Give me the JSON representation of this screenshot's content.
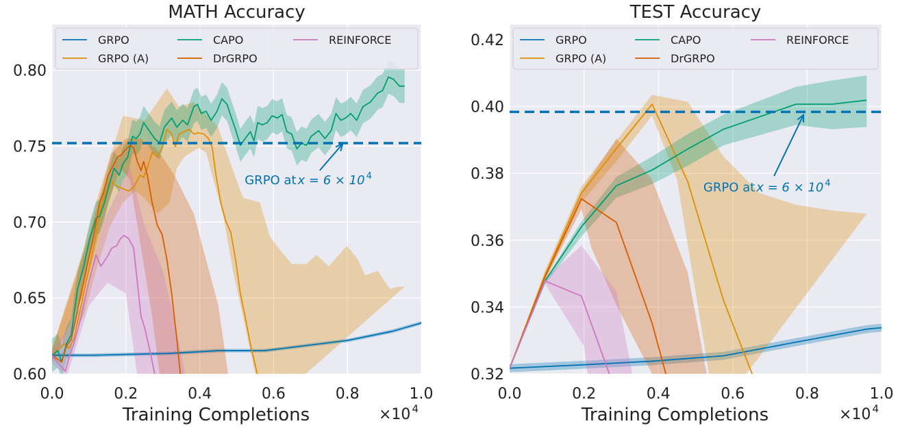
{
  "colors": {
    "GRPO": "#0173b2",
    "GRPO (A)": "#de8f05",
    "CAPO": "#029e73",
    "DrGRPO": "#d55e00",
    "REINFORCE": "#cc78bc",
    "axes_bg": "#eaeaf2"
  },
  "chart_data": [
    {
      "type": "line",
      "title": "MATH Accuracy",
      "xlabel": "Training Completions",
      "x_multiplier": "×10",
      "x_multiplier_exp": "4",
      "xlim": [
        0,
        1.0
      ],
      "ylim": [
        0.6,
        0.83
      ],
      "xticks": [
        "0.0",
        "0.2",
        "0.4",
        "0.6",
        "0.8",
        "1.0"
      ],
      "yticks": [
        "0.60",
        "0.65",
        "0.70",
        "0.75",
        "0.80"
      ],
      "grid": true,
      "legend": "top, 3 columns",
      "legend_entries": [
        "GRPO",
        "CAPO",
        "REINFORCE",
        "GRPO (A)",
        "DrGRPO"
      ],
      "hline": {
        "y": 0.752,
        "color": "#0173b2",
        "style": "dashed"
      },
      "annotation": {
        "text": "GRPO at ",
        "math": "x = 6 × 10",
        "exp": "4",
        "text_at": [
          0.694,
          0.728
        ],
        "arrow_from": [
          0.725,
          0.734
        ],
        "arrow_to": [
          0.787,
          0.7515
        ]
      },
      "series": [
        {
          "name": "GRPO",
          "x": [
            0,
            0.112,
            0.318,
            0.45,
            0.576,
            0.802,
            0.922,
            1.001
          ],
          "y": [
            0.6123,
            0.6123,
            0.6135,
            0.6153,
            0.6153,
            0.6221,
            0.6281,
            0.6336
          ],
          "band": 0.0012
        },
        {
          "name": "GRPO (A)",
          "x": [
            0,
            0.019,
            0.033,
            0.046,
            0.059,
            0.079,
            0.099,
            0.119,
            0.132,
            0.145,
            0.158,
            0.168,
            0.178,
            0.192,
            0.208,
            0.221,
            0.238,
            0.248,
            0.258,
            0.271,
            0.285,
            0.298,
            0.311,
            0.324,
            0.334,
            0.344,
            0.358,
            0.371,
            0.384,
            0.397,
            0.411,
            0.424,
            0.434,
            0.444,
            0.457,
            0.47,
            0.484,
            0.497,
            0.51,
            0.523,
            0.537,
            0.557
          ],
          "y": [
            0.6123,
            0.6168,
            0.6198,
            0.6168,
            0.6228,
            0.6453,
            0.6679,
            0.6904,
            0.7099,
            0.7189,
            0.7279,
            0.7249,
            0.7234,
            0.7219,
            0.7204,
            0.7229,
            0.7309,
            0.7294,
            0.7354,
            0.7459,
            0.7429,
            0.7489,
            0.761,
            0.758,
            0.7497,
            0.758,
            0.7595,
            0.761,
            0.758,
            0.7587,
            0.758,
            0.755,
            0.749,
            0.7309,
            0.7129,
            0.7009,
            0.6934,
            0.6754,
            0.6529,
            0.6378,
            0.6198,
            0.5988
          ],
          "upper": {
            "x": [
              0,
              0.086,
              0.119,
              0.192,
              0.251,
              0.311,
              0.344,
              0.384,
              0.45,
              0.477,
              0.517,
              0.563,
              0.59,
              0.623,
              0.649,
              0.689,
              0.716,
              0.749,
              0.799,
              0.828,
              0.848,
              0.882,
              0.915,
              0.935,
              0.955
            ],
            "y": [
              0.6168,
              0.6829,
              0.7129,
              0.77,
              0.767,
              0.788,
              0.776,
              0.779,
              0.7625,
              0.743,
              0.716,
              0.7129,
              0.6904,
              0.6799,
              0.6724,
              0.6724,
              0.6784,
              0.6709,
              0.6844,
              0.6754,
              0.6649,
              0.6679,
              0.6559,
              0.6574,
              0.6574
            ]
          },
          "lower": {
            "x": [
              0,
              0.086,
              0.119,
              0.158,
              0.192,
              0.225,
              0.251,
              0.285,
              0.318,
              0.338,
              0.358,
              0.397,
              0.417,
              0.437,
              0.464,
              0.49,
              0.517,
              0.55,
              0.583
            ],
            "y": [
              0.6078,
              0.6378,
              0.6679,
              0.6979,
              0.7129,
              0.7204,
              0.7159,
              0.7054,
              0.7129,
              0.7354,
              0.7429,
              0.7489,
              0.7459,
              0.7279,
              0.7039,
              0.6679,
              0.6378,
              0.6,
              0.5778
            ]
          }
        },
        {
          "name": "CAPO",
          "x": [
            0,
            0.016,
            0.026,
            0.039,
            0.052,
            0.069,
            0.086,
            0.102,
            0.119,
            0.129,
            0.142,
            0.155,
            0.168,
            0.182,
            0.192,
            0.205,
            0.218,
            0.228,
            0.238,
            0.248,
            0.265,
            0.278,
            0.291,
            0.304,
            0.324,
            0.338,
            0.354,
            0.367,
            0.384,
            0.394,
            0.404,
            0.417,
            0.431,
            0.447,
            0.46,
            0.474,
            0.484,
            0.497,
            0.51,
            0.523,
            0.537,
            0.547,
            0.557,
            0.57,
            0.583,
            0.596,
            0.61,
            0.623,
            0.636,
            0.649,
            0.663,
            0.676,
            0.689,
            0.702,
            0.722,
            0.739,
            0.756,
            0.769,
            0.782,
            0.795,
            0.809,
            0.825,
            0.842,
            0.862,
            0.882,
            0.895,
            0.911,
            0.925,
            0.941,
            0.955
          ],
          "y": [
            0.6123,
            0.6153,
            0.6078,
            0.6198,
            0.6258,
            0.6559,
            0.6709,
            0.6889,
            0.7024,
            0.7039,
            0.7129,
            0.7249,
            0.7354,
            0.7309,
            0.7384,
            0.7429,
            0.7565,
            0.755,
            0.758,
            0.7655,
            0.7595,
            0.755,
            0.752,
            0.7625,
            0.7685,
            0.7625,
            0.767,
            0.764,
            0.776,
            0.7775,
            0.7715,
            0.773,
            0.767,
            0.773,
            0.7812,
            0.7775,
            0.77,
            0.761,
            0.7505,
            0.755,
            0.7595,
            0.7535,
            0.7655,
            0.764,
            0.7655,
            0.77,
            0.7685,
            0.7707,
            0.7595,
            0.758,
            0.7482,
            0.752,
            0.7505,
            0.7565,
            0.7602,
            0.755,
            0.7602,
            0.7715,
            0.767,
            0.7685,
            0.7715,
            0.767,
            0.776,
            0.779,
            0.785,
            0.7865,
            0.7955,
            0.794,
            0.7895,
            0.7895
          ],
          "band": 0.011
        },
        {
          "name": "DrGRPO",
          "x": [
            0,
            0.026,
            0.039,
            0.052,
            0.072,
            0.092,
            0.112,
            0.129,
            0.139,
            0.152,
            0.165,
            0.178,
            0.188,
            0.198,
            0.211,
            0.221,
            0.231,
            0.241,
            0.248,
            0.258,
            0.271,
            0.285,
            0.298,
            0.311,
            0.324,
            0.338,
            0.348
          ],
          "y": [
            0.6123,
            0.6078,
            0.6183,
            0.6228,
            0.6453,
            0.6679,
            0.6904,
            0.7129,
            0.7189,
            0.7309,
            0.7369,
            0.7429,
            0.7444,
            0.7474,
            0.7505,
            0.7489,
            0.7399,
            0.7339,
            0.7399,
            0.7309,
            0.7129,
            0.6979,
            0.6919,
            0.6754,
            0.6529,
            0.6228,
            0.5988
          ],
          "upper": {
            "x": [
              0,
              0.1,
              0.16,
              0.2,
              0.24,
              0.28,
              0.298,
              0.331,
              0.384,
              0.417,
              0.45,
              0.477
            ],
            "y": [
              0.616,
              0.69,
              0.745,
              0.755,
              0.755,
              0.749,
              0.743,
              0.731,
              0.7054,
              0.6754,
              0.6453,
              0.6
            ]
          },
          "lower": {
            "x": [
              0,
              0.086,
              0.152,
              0.185,
              0.211,
              0.231,
              0.251,
              0.271,
              0.291
            ],
            "y": [
              0.6078,
              0.6529,
              0.7129,
              0.7354,
              0.728,
              0.6979,
              0.6679,
              0.6378,
              0.6
            ]
          }
        },
        {
          "name": "REINFORCE",
          "x": [
            0,
            0.019,
            0.036,
            0.046,
            0.059,
            0.079,
            0.099,
            0.119,
            0.132,
            0.149,
            0.162,
            0.175,
            0.185,
            0.195,
            0.208,
            0.221,
            0.231,
            0.241,
            0.251,
            0.265,
            0.278
          ],
          "y": [
            0.6123,
            0.6063,
            0.6018,
            0.6108,
            0.6198,
            0.6378,
            0.6604,
            0.6784,
            0.6709,
            0.6769,
            0.6829,
            0.6844,
            0.6889,
            0.6912,
            0.6889,
            0.6829,
            0.6604,
            0.6378,
            0.6303,
            0.6153,
            0.6
          ],
          "upper": {
            "x": [
              0,
              0.08,
              0.14,
              0.2,
              0.21,
              0.25,
              0.3,
              0.33,
              0.36
            ],
            "y": [
              0.614,
              0.645,
              0.701,
              0.731,
              0.737,
              0.698,
              0.668,
              0.638,
              0.6
            ]
          },
          "lower": {
            "x": [
              0,
              0.04,
              0.1,
              0.15,
              0.2,
              0.23
            ],
            "y": [
              0.607,
              0.598,
              0.645,
              0.66,
              0.653,
              0.6
            ]
          }
        }
      ]
    },
    {
      "type": "line",
      "title": "TEST Accuracy",
      "xlabel": "Training Completions",
      "x_multiplier": "×10",
      "x_multiplier_exp": "4",
      "xlim": [
        0,
        1.0
      ],
      "ylim": [
        0.32,
        0.4245
      ],
      "xticks": [
        "0.0",
        "0.2",
        "0.4",
        "0.6",
        "0.8",
        "1.0"
      ],
      "yticks": [
        "0.32",
        "0.34",
        "0.36",
        "0.38",
        "0.40",
        "0.42"
      ],
      "grid": true,
      "legend": "top, 3 columns",
      "legend_entries": [
        "GRPO",
        "CAPO",
        "REINFORCE",
        "GRPO (A)",
        "DrGRPO"
      ],
      "hline": {
        "y": 0.3984,
        "color": "#0173b2",
        "style": "dashed"
      },
      "annotation": {
        "text": "GRPO at ",
        "math": "x = 6 × 10",
        "exp": "4",
        "text_at": [
          0.692,
          0.376
        ],
        "arrow_from": [
          0.711,
          0.3792
        ],
        "arrow_to": [
          0.79,
          0.3975
        ]
      },
      "series": [
        {
          "name": "GRPO",
          "x": [
            0,
            0.193,
            0.383,
            0.575,
            0.77,
            0.96,
            1.0
          ],
          "y": [
            0.3217,
            0.3227,
            0.3238,
            0.3254,
            0.3295,
            0.3334,
            0.3338
          ],
          "band": 0.0012
        },
        {
          "name": "GRPO (A)",
          "x": [
            0,
            0.095,
            0.193,
            0.287,
            0.383,
            0.479,
            0.575,
            0.652,
            0.77
          ],
          "y": [
            0.3217,
            0.3495,
            0.3741,
            0.3874,
            0.4007,
            0.3775,
            0.342,
            0.32,
            0.305
          ],
          "upper": {
            "x": [
              0,
              0.095,
              0.193,
              0.287,
              0.383,
              0.479,
              0.575,
              0.672,
              0.77,
              0.867,
              0.96
            ],
            "y": [
              0.3218,
              0.3509,
              0.3761,
              0.3898,
              0.4035,
              0.4014,
              0.385,
              0.3741,
              0.3706,
              0.3689,
              0.3679
            ]
          },
          "lower": {
            "x": [
              0,
              0.095,
              0.193,
              0.287,
              0.383,
              0.45,
              0.536,
              0.569
            ],
            "y": [
              0.3215,
              0.3481,
              0.3713,
              0.3836,
              0.3973,
              0.3782,
              0.32,
              0.31
            ]
          }
        },
        {
          "name": "CAPO",
          "x": [
            0,
            0.095,
            0.193,
            0.287,
            0.383,
            0.479,
            0.575,
            0.77,
            0.867,
            0.96
          ],
          "y": [
            0.3217,
            0.3478,
            0.364,
            0.3763,
            0.381,
            0.3873,
            0.3932,
            0.4007,
            0.4007,
            0.4019
          ],
          "upper": {
            "x": [
              0,
              0.095,
              0.193,
              0.287,
              0.383,
              0.479,
              0.575,
              0.77,
              0.867,
              0.96
            ],
            "y": [
              0.3218,
              0.3481,
              0.3656,
              0.3789,
              0.385,
              0.3918,
              0.3976,
              0.4059,
              0.4078,
              0.4093
            ]
          },
          "lower": {
            "x": [
              0,
              0.095,
              0.193,
              0.287,
              0.383,
              0.479,
              0.575,
              0.77,
              0.867,
              0.96
            ],
            "y": [
              0.3215,
              0.3468,
              0.3611,
              0.3727,
              0.3768,
              0.3823,
              0.3884,
              0.3945,
              0.3932,
              0.3939
            ]
          }
        },
        {
          "name": "DrGRPO",
          "x": [
            0,
            0.095,
            0.193,
            0.287,
            0.383,
            0.42,
            0.5
          ],
          "y": [
            0.3217,
            0.349,
            0.3724,
            0.3653,
            0.3352,
            0.32,
            0.3
          ],
          "upper": {
            "x": [
              0,
              0.095,
              0.193,
              0.287,
              0.383,
              0.479,
              0.53
            ],
            "y": [
              0.3218,
              0.35,
              0.3747,
              0.3904,
              0.3782,
              0.3502,
              0.32
            ]
          },
          "lower": {
            "x": [
              0,
              0.095,
              0.193,
              0.22,
              0.287,
              0.383
            ],
            "y": [
              0.3215,
              0.348,
              0.3693,
              0.3577,
              0.3406,
              0.32
            ]
          }
        },
        {
          "name": "REINFORCE",
          "x": [
            0,
            0.095,
            0.193,
            0.268,
            0.35
          ],
          "y": [
            0.3217,
            0.3478,
            0.3433,
            0.32,
            0.3
          ],
          "upper": {
            "x": [
              0,
              0.095,
              0.193,
              0.287,
              0.33
            ],
            "y": [
              0.3218,
              0.3485,
              0.3584,
              0.3447,
              0.32
            ]
          },
          "lower": {
            "x": [
              0,
              0.095,
              0.2,
              0.21
            ],
            "y": [
              0.3215,
              0.347,
              0.3283,
              0.32
            ]
          }
        }
      ]
    }
  ]
}
